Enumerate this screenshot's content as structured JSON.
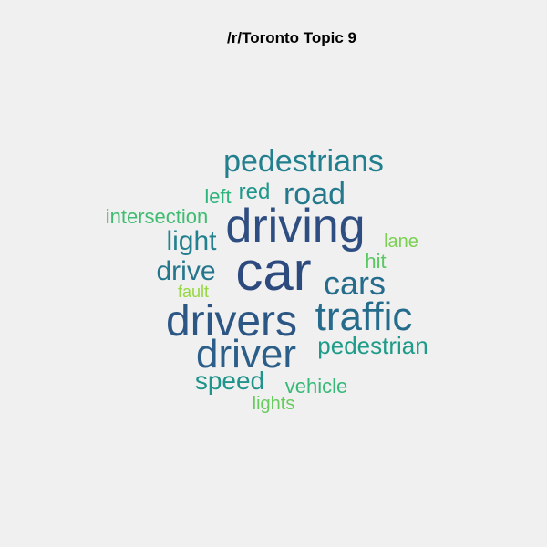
{
  "title": "/r/Toronto Topic 9",
  "words": [
    {
      "text": "car",
      "color": "#2d4a7f"
    },
    {
      "text": "driving",
      "color": "#2e4d80"
    },
    {
      "text": "drivers",
      "color": "#2c5785"
    },
    {
      "text": "traffic",
      "color": "#256b8c"
    },
    {
      "text": "driver",
      "color": "#2b5e88"
    },
    {
      "text": "pedestrians",
      "color": "#227f8e"
    },
    {
      "text": "road",
      "color": "#24798d"
    },
    {
      "text": "cars",
      "color": "#266c8c"
    },
    {
      "text": "pedestrian",
      "color": "#1f9c89"
    },
    {
      "text": "drive",
      "color": "#24768d"
    },
    {
      "text": "light",
      "color": "#23808e"
    },
    {
      "text": "speed",
      "color": "#1f948b"
    },
    {
      "text": "red",
      "color": "#1f978b"
    },
    {
      "text": "left",
      "color": "#2db47c"
    },
    {
      "text": "intersection",
      "color": "#40bc72"
    },
    {
      "text": "vehicle",
      "color": "#36b877"
    },
    {
      "text": "hit",
      "color": "#5cc863"
    },
    {
      "text": "lane",
      "color": "#7ad151"
    },
    {
      "text": "lights",
      "color": "#66cb5d"
    },
    {
      "text": "fault",
      "color": "#95d840"
    }
  ]
}
